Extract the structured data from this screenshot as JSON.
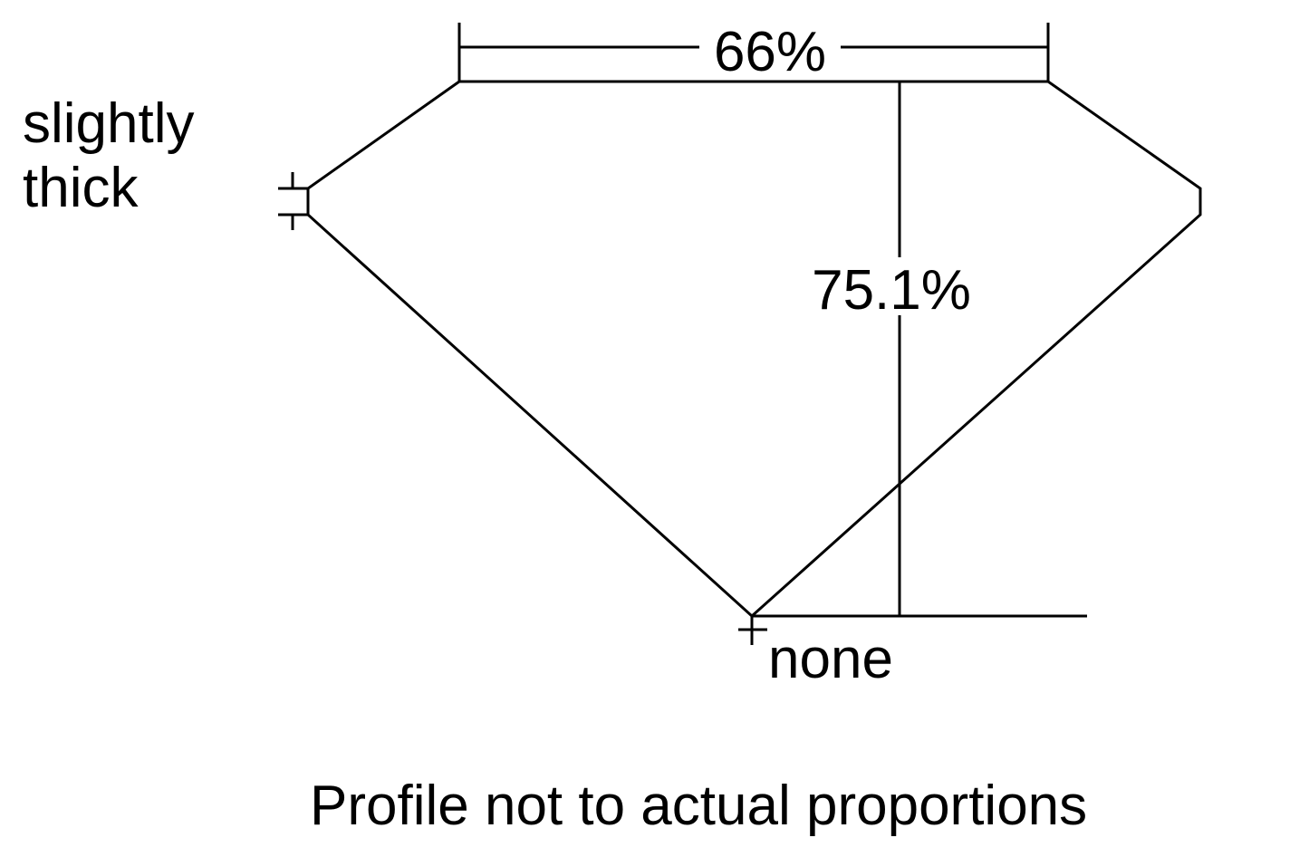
{
  "diagram": {
    "table_label": "66%",
    "depth_label": "75.1%",
    "girdle_label_line1": "slightly",
    "girdle_label_line2": "thick",
    "culet_label": "none",
    "footnote": "Profile not to actual proportions",
    "line_color": "#000000",
    "background_color": "#ffffff"
  }
}
